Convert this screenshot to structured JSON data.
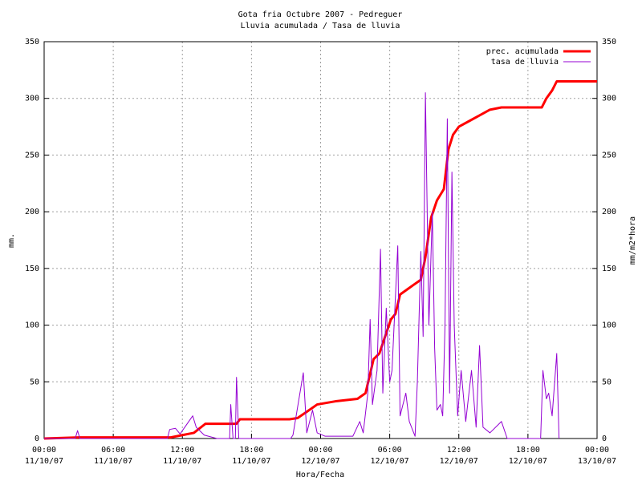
{
  "chart_data": {
    "type": "line",
    "title": "Gota fria Octubre 2007 - Pedreguer",
    "subtitle": "Lluvia acumulada / Tasa de lluvia",
    "x_label": "Hora/Fecha",
    "y_label": "mm.",
    "y2_label": "mm/m2*hora",
    "xlim": [
      0,
      48
    ],
    "xticks": [
      {
        "value": 0,
        "label": "00:00\n11/10/07"
      },
      {
        "value": 6,
        "label": "06:00\n11/10/07"
      },
      {
        "value": 12,
        "label": "12:00\n11/10/07"
      },
      {
        "value": 18,
        "label": "18:00\n11/10/07"
      },
      {
        "value": 24,
        "label": "00:00\n12/10/07"
      },
      {
        "value": 30,
        "label": "06:00\n12/10/07"
      },
      {
        "value": 36,
        "label": "12:00\n12/10/07"
      },
      {
        "value": 42,
        "label": "18:00\n12/10/07"
      },
      {
        "value": 48,
        "label": "00:00\n13/10/07"
      }
    ],
    "ylim": [
      0,
      350
    ],
    "yticks": [
      0,
      50,
      100,
      150,
      200,
      250,
      300,
      350
    ],
    "y2lim": [
      0,
      350
    ],
    "y2ticks": [
      0,
      50,
      100,
      150,
      200,
      250,
      300,
      350
    ],
    "grid": true,
    "legend": "top-right",
    "series": [
      {
        "name": "prec. acumulada",
        "color": "#ff0000",
        "width": 3,
        "x": [
          0,
          3,
          11,
          12,
          13,
          14,
          16.7,
          17,
          21.3,
          22,
          23,
          23.7,
          25.4,
          27.2,
          27.9,
          28.6,
          29.1,
          29.6,
          30.1,
          30.5,
          30.9,
          32,
          32.7,
          33.1,
          33.6,
          34.1,
          34.7,
          35.1,
          35.5,
          36,
          36.9,
          37.8,
          38.7,
          39.7,
          43.2,
          43.6,
          44.1,
          44.5,
          48
        ],
        "values": [
          0,
          1,
          1,
          3,
          5,
          13,
          13,
          17,
          17,
          18,
          25,
          30,
          33,
          35,
          40,
          70,
          75,
          90,
          105,
          110,
          127,
          135,
          140,
          160,
          195,
          210,
          220,
          255,
          268,
          275,
          280,
          285,
          290,
          292,
          292,
          300,
          307,
          315,
          315
        ]
      },
      {
        "name": "tasa de lluvia",
        "color": "#9400d3",
        "width": 1,
        "axis": "y2",
        "x": [
          0,
          2.7,
          2.9,
          3.1,
          10.7,
          10.9,
          11.4,
          11.8,
          12.9,
          13.2,
          13.9,
          15,
          16.1,
          16.2,
          16.4,
          16.6,
          16.7,
          16.9,
          21.4,
          21.6,
          22.5,
          22.8,
          23.3,
          23.7,
          24.4,
          26.8,
          27.4,
          27.7,
          28.1,
          28.3,
          28.5,
          28.9,
          29.2,
          29.4,
          29.7,
          30,
          30.2,
          30.7,
          30.9,
          31.4,
          31.7,
          32.2,
          32.4,
          32.7,
          32.9,
          33.1,
          33.4,
          33.7,
          33.9,
          34.1,
          34.4,
          34.6,
          34.8,
          35,
          35.2,
          35.4,
          35.6,
          35.9,
          36.2,
          36.6,
          37.1,
          37.5,
          37.8,
          38.1,
          38.7,
          39.7,
          40.2,
          43.1,
          43.3,
          43.6,
          43.8,
          44.1,
          44.5,
          44.7
        ],
        "values": [
          0,
          0,
          7,
          0,
          0,
          8,
          9,
          4,
          20,
          10,
          3,
          0,
          0,
          30,
          0,
          0,
          54,
          0,
          0,
          3,
          58,
          5,
          25,
          5,
          2,
          2,
          15,
          5,
          40,
          105,
          30,
          60,
          167,
          40,
          115,
          50,
          60,
          170,
          20,
          40,
          15,
          2,
          50,
          165,
          90,
          305,
          100,
          200,
          80,
          25,
          30,
          20,
          100,
          282,
          40,
          235,
          100,
          20,
          60,
          15,
          60,
          10,
          82,
          10,
          5,
          15,
          0,
          0,
          60,
          35,
          40,
          20,
          75,
          0
        ]
      }
    ]
  }
}
